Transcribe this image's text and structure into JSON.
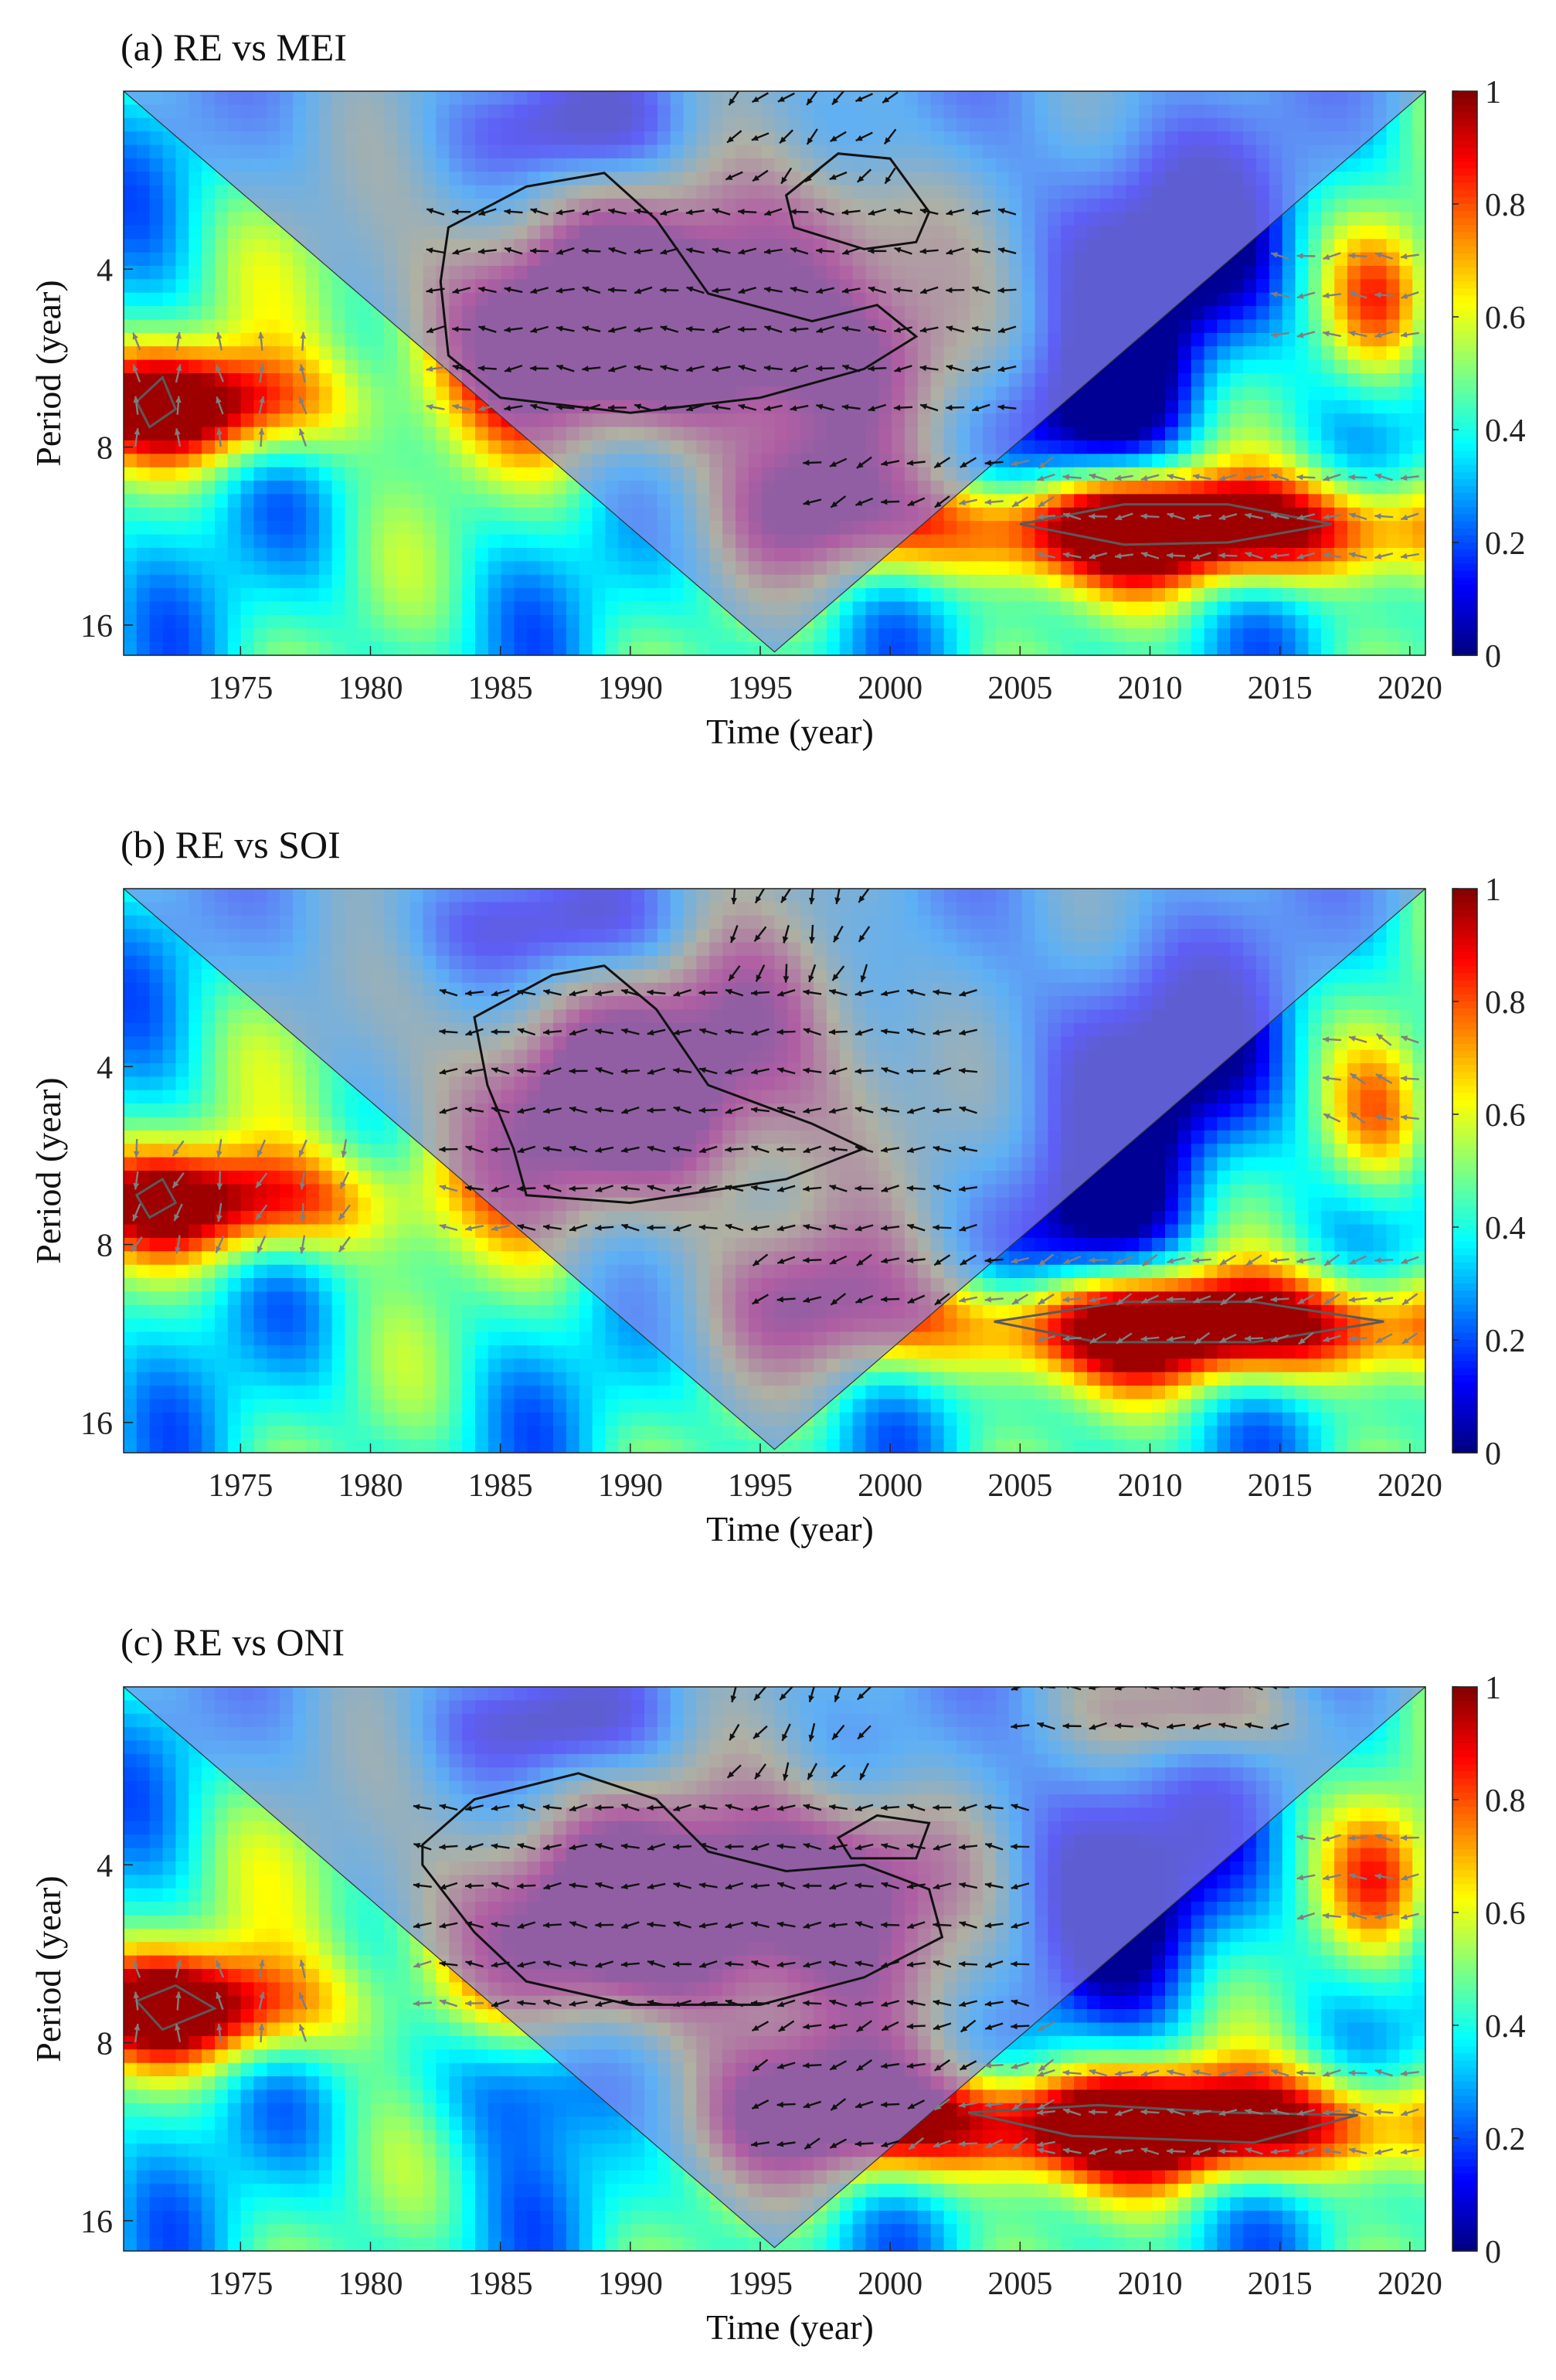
{
  "figure": {
    "description_panels": 3,
    "shared": {
      "xlabel": "Time (year)",
      "ylabel": "Period (year)",
      "x_ticks": [
        1975,
        1980,
        1985,
        1990,
        1995,
        2000,
        2005,
        2010,
        2015,
        2020
      ],
      "y_ticks": [
        4,
        8,
        16
      ],
      "colorbar_ticks": [
        0,
        0.2,
        0.4,
        0.6,
        0.8,
        1
      ],
      "colorbar_tick_labels": [
        "0",
        "0.2",
        "0.4",
        "0.6",
        "0.8",
        "1"
      ],
      "colormap": "jet",
      "coi_shade_color": "#8a8af0",
      "arrow_color_significant": "#111111",
      "arrow_color_outside": "#7f7f7f",
      "contour_color": "#111111"
    }
  },
  "chart_data": [
    {
      "type": "heatmap",
      "subtype": "wavelet-coherence",
      "title": "(a) RE vs MEI",
      "xlabel": "Time (year)",
      "ylabel": "Period (year)",
      "xlim": [
        1970.5,
        2020.6
      ],
      "ylim_period_log2": [
        2,
        18
      ],
      "y_scale": "log2",
      "colorbar_range": [
        0,
        1
      ],
      "blobs": [
        {
          "t": 1989,
          "p": 4.8,
          "st": 5.5,
          "sp": 0.45,
          "a": 0.82
        },
        {
          "t": 1996,
          "p": 5.5,
          "st": 5.0,
          "sp": 0.35,
          "a": 0.45
        },
        {
          "t": 1998.5,
          "p": 3.3,
          "st": 3.0,
          "sp": 0.3,
          "a": 0.35
        },
        {
          "t": 1997,
          "p": 9.5,
          "st": 2.5,
          "sp": 0.3,
          "a": 0.45
        },
        {
          "t": 2011,
          "p": 11,
          "st": 8.0,
          "sp": 0.22,
          "a": 0.78
        },
        {
          "t": 1973,
          "p": 6.8,
          "st": 4.0,
          "sp": 0.22,
          "a": 0.65
        },
        {
          "t": 2019,
          "p": 4.5,
          "st": 1.5,
          "sp": 0.3,
          "a": 0.35
        },
        {
          "t": 1988,
          "p": 2.3,
          "st": 3.0,
          "sp": 0.2,
          "a": -0.35
        },
        {
          "t": 2010,
          "p": 3.8,
          "st": 3.5,
          "sp": 0.5,
          "a": -0.45
        },
        {
          "t": 2008,
          "p": 7.0,
          "st": 2.5,
          "sp": 0.3,
          "a": -0.35
        }
      ],
      "contours": [
        [
          [
            1983,
            3.4
          ],
          [
            1986,
            2.9
          ],
          [
            1989,
            2.75
          ],
          [
            1991,
            3.3
          ],
          [
            1993,
            4.4
          ],
          [
            1997,
            4.9
          ],
          [
            1999.5,
            4.6
          ],
          [
            2001,
            5.2
          ],
          [
            1999,
            5.9
          ],
          [
            1995,
            6.6
          ],
          [
            1990,
            7.0
          ],
          [
            1985,
            6.6
          ],
          [
            1983,
            5.6
          ],
          [
            1982.7,
            4.2
          ],
          [
            1983,
            3.4
          ]
        ],
        [
          [
            1996,
            3.0
          ],
          [
            1998,
            2.55
          ],
          [
            2000,
            2.6
          ],
          [
            2001.5,
            3.2
          ],
          [
            2001,
            3.6
          ],
          [
            1999,
            3.7
          ],
          [
            1996.3,
            3.4
          ],
          [
            1996,
            3.0
          ]
        ],
        [
          [
            2005,
            10.8
          ],
          [
            2009,
            10.0
          ],
          [
            2013,
            10.0
          ],
          [
            2017,
            10.8
          ],
          [
            2013,
            11.6
          ],
          [
            2009,
            11.7
          ],
          [
            2005,
            10.8
          ]
        ],
        [
          [
            1971,
            6.7
          ],
          [
            1972,
            6.1
          ],
          [
            1972.5,
            6.9
          ],
          [
            1971.5,
            7.4
          ],
          [
            1971,
            6.7
          ]
        ]
      ],
      "arrow_regions": [
        {
          "t0": 1982.5,
          "t1": 2004.5,
          "p0": 3.2,
          "p1": 7.2,
          "angle": 180,
          "dt": 1.0,
          "dl": 0.22,
          "color": "sig"
        },
        {
          "t0": 1994,
          "t1": 2000,
          "p0": 2.05,
          "p1": 3.2,
          "angle": 220,
          "dt": 1.0,
          "dl": 0.22,
          "color": "sig"
        },
        {
          "t0": 1997,
          "t1": 2006,
          "p0": 8.5,
          "p1": 11.5,
          "angle": 200,
          "dt": 1.0,
          "dl": 0.22,
          "color": "sig"
        },
        {
          "t0": 2006,
          "t1": 2020,
          "p0": 9.0,
          "p1": 12.5,
          "angle": 180,
          "dt": 1.0,
          "dl": 0.22,
          "color": "out"
        },
        {
          "t0": 2015,
          "t1": 2020,
          "p0": 3.8,
          "p1": 5.2,
          "angle": 180,
          "dt": 1.0,
          "dl": 0.22,
          "color": "out"
        },
        {
          "t0": 1971,
          "t1": 1977.5,
          "p0": 5.3,
          "p1": 8.0,
          "angle": 95,
          "dt": 1.6,
          "dl": 0.18,
          "color": "out"
        }
      ]
    },
    {
      "type": "heatmap",
      "subtype": "wavelet-coherence",
      "title": "(b) RE vs SOI",
      "xlabel": "Time (year)",
      "ylabel": "Period (year)",
      "xlim": [
        1970.5,
        2020.6
      ],
      "ylim_period_log2": [
        2,
        18
      ],
      "y_scale": "log2",
      "colorbar_range": [
        0,
        1
      ],
      "blobs": [
        {
          "t": 1990,
          "p": 4.6,
          "st": 5.5,
          "sp": 0.45,
          "a": 0.75
        },
        {
          "t": 1996,
          "p": 3.0,
          "st": 3.0,
          "sp": 0.4,
          "a": 0.3
        },
        {
          "t": 1997,
          "p": 9.5,
          "st": 3.0,
          "sp": 0.3,
          "a": 0.4
        },
        {
          "t": 2012,
          "p": 11,
          "st": 8.0,
          "sp": 0.22,
          "a": 0.75
        },
        {
          "t": 1974,
          "p": 6.8,
          "st": 5.0,
          "sp": 0.22,
          "a": 0.6
        },
        {
          "t": 2019,
          "p": 4.8,
          "st": 1.5,
          "sp": 0.3,
          "a": 0.3
        },
        {
          "t": 1987,
          "p": 2.3,
          "st": 4.0,
          "sp": 0.2,
          "a": -0.3
        },
        {
          "t": 2010,
          "p": 4.0,
          "st": 3.5,
          "sp": 0.5,
          "a": -0.4
        },
        {
          "t": 2008,
          "p": 7.5,
          "st": 2.5,
          "sp": 0.3,
          "a": -0.3
        }
      ],
      "contours": [
        [
          [
            1984,
            3.3
          ],
          [
            1987,
            2.8
          ],
          [
            1989,
            2.7
          ],
          [
            1991,
            3.2
          ],
          [
            1993,
            4.3
          ],
          [
            1997,
            5.0
          ],
          [
            1999,
            5.5
          ],
          [
            1996,
            6.2
          ],
          [
            1990,
            6.8
          ],
          [
            1986,
            6.6
          ],
          [
            1985.5,
            5.5
          ],
          [
            1984.5,
            4.3
          ],
          [
            1984,
            3.3
          ]
        ],
        [
          [
            2004,
            10.8
          ],
          [
            2009,
            10.0
          ],
          [
            2014,
            10.0
          ],
          [
            2019,
            10.8
          ],
          [
            2014,
            11.7
          ],
          [
            2008,
            11.7
          ],
          [
            2004,
            10.8
          ]
        ],
        [
          [
            1971,
            6.6
          ],
          [
            1972,
            6.2
          ],
          [
            1972.5,
            6.8
          ],
          [
            1971.5,
            7.2
          ],
          [
            1971,
            6.6
          ]
        ]
      ],
      "arrow_regions": [
        {
          "t0": 1983,
          "t1": 2003,
          "p0": 3.0,
          "p1": 7.5,
          "angle": 180,
          "dt": 1.0,
          "dl": 0.22,
          "color": "sig"
        },
        {
          "t0": 1994,
          "t1": 1999,
          "p0": 2.05,
          "p1": 3.0,
          "angle": 250,
          "dt": 1.0,
          "dl": 0.22,
          "color": "sig"
        },
        {
          "t0": 1995,
          "t1": 2006,
          "p0": 8.5,
          "p1": 11.5,
          "angle": 200,
          "dt": 1.0,
          "dl": 0.22,
          "color": "sig"
        },
        {
          "t0": 2006,
          "t1": 2020,
          "p0": 8.5,
          "p1": 12.5,
          "angle": 200,
          "dt": 1.0,
          "dl": 0.22,
          "color": "out"
        },
        {
          "t0": 2017,
          "t1": 2020,
          "p0": 3.6,
          "p1": 5.0,
          "angle": 160,
          "dt": 1.0,
          "dl": 0.22,
          "color": "out"
        },
        {
          "t0": 1971,
          "t1": 1979.5,
          "p0": 5.5,
          "p1": 8.0,
          "angle": 250,
          "dt": 1.6,
          "dl": 0.18,
          "color": "out"
        }
      ]
    },
    {
      "type": "heatmap",
      "subtype": "wavelet-coherence",
      "title": "(c) RE vs ONI",
      "xlabel": "Time (year)",
      "ylabel": "Period (year)",
      "xlim": [
        1970.5,
        2020.6
      ],
      "ylim_period_log2": [
        2,
        18
      ],
      "y_scale": "log2",
      "colorbar_range": [
        0,
        1
      ],
      "blobs": [
        {
          "t": 1992,
          "p": 4.9,
          "st": 7.0,
          "sp": 0.45,
          "a": 0.85
        },
        {
          "t": 1999,
          "p": 3.8,
          "st": 3.0,
          "sp": 0.3,
          "a": 0.3
        },
        {
          "t": 1997,
          "p": 10,
          "st": 3.5,
          "sp": 0.3,
          "a": 0.45
        },
        {
          "t": 2010,
          "p": 11,
          "st": 8.5,
          "sp": 0.22,
          "a": 0.8
        },
        {
          "t": 1973,
          "p": 7.0,
          "st": 4.0,
          "sp": 0.22,
          "a": 0.65
        },
        {
          "t": 2019,
          "p": 4.2,
          "st": 1.5,
          "sp": 0.3,
          "a": 0.35
        },
        {
          "t": 2012,
          "p": 2.2,
          "st": 3.0,
          "sp": 0.2,
          "a": 0.4
        },
        {
          "t": 1987,
          "p": 2.3,
          "st": 3.0,
          "sp": 0.2,
          "a": -0.35
        },
        {
          "t": 2008,
          "p": 4.3,
          "st": 3.5,
          "sp": 0.5,
          "a": -0.45
        },
        {
          "t": 1986,
          "p": 9.0,
          "st": 2.5,
          "sp": 0.3,
          "a": -0.3
        }
      ],
      "contours": [
        [
          [
            1982,
            3.7
          ],
          [
            1984,
            3.1
          ],
          [
            1988,
            2.8
          ],
          [
            1991,
            3.1
          ],
          [
            1993,
            3.8
          ],
          [
            1996,
            4.1
          ],
          [
            1999,
            4.0
          ],
          [
            2001.5,
            4.4
          ],
          [
            2002,
            5.3
          ],
          [
            1999,
            6.2
          ],
          [
            1995,
            6.9
          ],
          [
            1990,
            6.9
          ],
          [
            1986,
            6.3
          ],
          [
            1984,
            5.2
          ],
          [
            1982,
            4.0
          ],
          [
            1982,
            3.7
          ]
        ],
        [
          [
            1998,
            3.6
          ],
          [
            1999.5,
            3.3
          ],
          [
            2001.5,
            3.4
          ],
          [
            2001,
            3.9
          ],
          [
            1998.5,
            3.9
          ],
          [
            1998,
            3.6
          ]
        ],
        [
          [
            2003,
            10.5
          ],
          [
            2008,
            10.2
          ],
          [
            2013,
            10.5
          ],
          [
            2018,
            10.6
          ],
          [
            2014,
            11.8
          ],
          [
            2007,
            11.5
          ],
          [
            2003,
            10.5
          ]
        ],
        [
          [
            1971,
            6.8
          ],
          [
            1972.5,
            6.4
          ],
          [
            1974,
            7.0
          ],
          [
            1972,
            7.6
          ],
          [
            1971,
            6.8
          ]
        ]
      ],
      "arrow_regions": [
        {
          "t0": 1982,
          "t1": 2005,
          "p0": 3.2,
          "p1": 7.2,
          "angle": 180,
          "dt": 1.0,
          "dl": 0.22,
          "color": "sig"
        },
        {
          "t0": 1994,
          "t1": 1999,
          "p0": 2.05,
          "p1": 3.2,
          "angle": 240,
          "dt": 1.0,
          "dl": 0.22,
          "color": "sig"
        },
        {
          "t0": 1995,
          "t1": 2006,
          "p0": 7.5,
          "p1": 12.0,
          "angle": 200,
          "dt": 1.0,
          "dl": 0.22,
          "color": "sig"
        },
        {
          "t0": 2006,
          "t1": 2020,
          "p0": 9.0,
          "p1": 12.5,
          "angle": 180,
          "dt": 1.0,
          "dl": 0.22,
          "color": "out"
        },
        {
          "t0": 2005,
          "t1": 2015,
          "p0": 2.0,
          "p1": 2.6,
          "angle": 180,
          "dt": 1.0,
          "dl": 0.22,
          "color": "sig"
        },
        {
          "t0": 2016,
          "t1": 2020,
          "p0": 3.6,
          "p1": 5.0,
          "angle": 180,
          "dt": 1.0,
          "dl": 0.22,
          "color": "out"
        },
        {
          "t0": 1971,
          "t1": 1977.5,
          "p0": 6.0,
          "p1": 8.2,
          "angle": 95,
          "dt": 1.6,
          "dl": 0.18,
          "color": "out"
        }
      ]
    }
  ]
}
